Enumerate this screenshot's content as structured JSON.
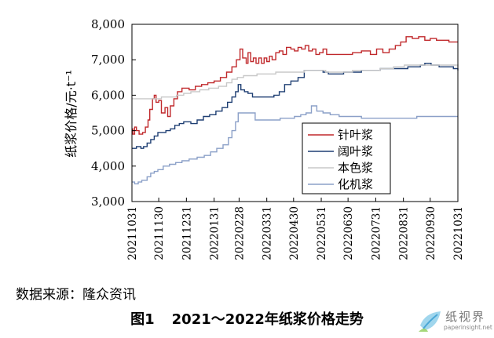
{
  "source_text": "数据来源：隆众资讯",
  "caption": {
    "figure_no": "图1",
    "title": "2021～2022年纸浆价格走势"
  },
  "watermark": {
    "name": "纸视界",
    "url": "paperinsight.net"
  },
  "colors": {
    "softwood": "#c0282b",
    "hardwood": "#1f3f73",
    "natural": "#c8c8c8",
    "mechanical": "#8ba0c8"
  },
  "chart_data": {
    "type": "line",
    "title": "",
    "xlabel": "",
    "ylabel": "纸浆价格/元·t⁻¹",
    "ylim": [
      3000,
      8000
    ],
    "yticks": [
      3000,
      4000,
      5000,
      6000,
      7000,
      8000
    ],
    "ytick_labels": [
      "3,000",
      "4,000",
      "5,000",
      "6,000",
      "7,000",
      "8,000"
    ],
    "xlim": [
      "2021-10-31",
      "2022-10-31"
    ],
    "xtick_labels": [
      "20211031",
      "20211130",
      "20211231",
      "20220131",
      "20220228",
      "20220331",
      "20220430",
      "20220531",
      "20220630",
      "20220731",
      "20220831",
      "20220930",
      "20221031"
    ],
    "legend_position": "right-center",
    "grid": false,
    "series": [
      {
        "name": "针叶浆",
        "color": "#c0282b",
        "points": [
          [
            "2021-10-31",
            5050
          ],
          [
            "2021-11-01",
            4900
          ],
          [
            "2021-11-03",
            5100
          ],
          [
            "2021-11-05",
            5000
          ],
          [
            "2021-11-08",
            4900
          ],
          [
            "2021-11-12",
            4950
          ],
          [
            "2021-11-15",
            5100
          ],
          [
            "2021-11-18",
            5300
          ],
          [
            "2021-11-20",
            5600
          ],
          [
            "2021-11-23",
            5900
          ],
          [
            "2021-11-25",
            6000
          ],
          [
            "2021-11-27",
            5800
          ],
          [
            "2021-11-30",
            5850
          ],
          [
            "2021-12-03",
            5500
          ],
          [
            "2021-12-07",
            5650
          ],
          [
            "2021-12-10",
            5400
          ],
          [
            "2021-12-13",
            5700
          ],
          [
            "2021-12-17",
            5900
          ],
          [
            "2021-12-21",
            6100
          ],
          [
            "2021-12-26",
            6200
          ],
          [
            "2022-01-03",
            6150
          ],
          [
            "2022-01-10",
            6250
          ],
          [
            "2022-01-17",
            6300
          ],
          [
            "2022-01-24",
            6350
          ],
          [
            "2022-01-31",
            6400
          ],
          [
            "2022-02-07",
            6500
          ],
          [
            "2022-02-14",
            6650
          ],
          [
            "2022-02-20",
            6800
          ],
          [
            "2022-02-25",
            7000
          ],
          [
            "2022-03-01",
            7300
          ],
          [
            "2022-03-04",
            7050
          ],
          [
            "2022-03-08",
            6900
          ],
          [
            "2022-03-10",
            7200
          ],
          [
            "2022-03-13",
            6950
          ],
          [
            "2022-03-16",
            7050
          ],
          [
            "2022-03-19",
            6900
          ],
          [
            "2022-03-22",
            7050
          ],
          [
            "2022-03-25",
            6900
          ],
          [
            "2022-03-28",
            7050
          ],
          [
            "2022-03-31",
            6950
          ],
          [
            "2022-04-03",
            7100
          ],
          [
            "2022-04-06",
            7000
          ],
          [
            "2022-04-10",
            7200
          ],
          [
            "2022-04-14",
            7250
          ],
          [
            "2022-04-18",
            7150
          ],
          [
            "2022-04-22",
            7350
          ],
          [
            "2022-04-27",
            7300
          ],
          [
            "2022-05-01",
            7250
          ],
          [
            "2022-05-05",
            7350
          ],
          [
            "2022-05-09",
            7300
          ],
          [
            "2022-05-13",
            7400
          ],
          [
            "2022-05-17",
            7250
          ],
          [
            "2022-05-21",
            7300
          ],
          [
            "2022-05-25",
            7150
          ],
          [
            "2022-05-29",
            7200
          ],
          [
            "2022-06-02",
            7300
          ],
          [
            "2022-06-06",
            7150
          ],
          [
            "2022-06-15",
            7150
          ],
          [
            "2022-06-25",
            7150
          ],
          [
            "2022-07-05",
            7200
          ],
          [
            "2022-07-15",
            7250
          ],
          [
            "2022-07-25",
            7150
          ],
          [
            "2022-08-01",
            7300
          ],
          [
            "2022-08-08",
            7200
          ],
          [
            "2022-08-15",
            7300
          ],
          [
            "2022-08-22",
            7400
          ],
          [
            "2022-08-28",
            7500
          ],
          [
            "2022-09-03",
            7650
          ],
          [
            "2022-09-10",
            7600
          ],
          [
            "2022-09-17",
            7650
          ],
          [
            "2022-09-24",
            7550
          ],
          [
            "2022-09-30",
            7600
          ],
          [
            "2022-10-07",
            7550
          ],
          [
            "2022-10-14",
            7550
          ],
          [
            "2022-10-21",
            7500
          ],
          [
            "2022-10-26",
            7500
          ],
          [
            "2022-10-31",
            7500
          ]
        ]
      },
      {
        "name": "阔叶浆",
        "color": "#1f3f73",
        "points": [
          [
            "2021-10-31",
            4500
          ],
          [
            "2021-11-05",
            4550
          ],
          [
            "2021-11-10",
            4500
          ],
          [
            "2021-11-13",
            4550
          ],
          [
            "2021-11-17",
            4650
          ],
          [
            "2021-11-21",
            4750
          ],
          [
            "2021-11-25",
            4850
          ],
          [
            "2021-11-29",
            4950
          ],
          [
            "2021-12-03",
            4950
          ],
          [
            "2021-12-08",
            5000
          ],
          [
            "2021-12-13",
            5050
          ],
          [
            "2021-12-18",
            5150
          ],
          [
            "2021-12-23",
            5200
          ],
          [
            "2021-12-28",
            5250
          ],
          [
            "2022-01-05",
            5200
          ],
          [
            "2022-01-12",
            5300
          ],
          [
            "2022-01-19",
            5400
          ],
          [
            "2022-01-26",
            5450
          ],
          [
            "2022-02-02",
            5550
          ],
          [
            "2022-02-09",
            5650
          ],
          [
            "2022-02-15",
            5800
          ],
          [
            "2022-02-20",
            5950
          ],
          [
            "2022-02-24",
            6100
          ],
          [
            "2022-02-27",
            6300
          ],
          [
            "2022-03-02",
            6150
          ],
          [
            "2022-03-06",
            6100
          ],
          [
            "2022-03-10",
            6050
          ],
          [
            "2022-03-15",
            5950
          ],
          [
            "2022-03-22",
            5950
          ],
          [
            "2022-04-01",
            5950
          ],
          [
            "2022-04-08",
            6000
          ],
          [
            "2022-04-14",
            6100
          ],
          [
            "2022-04-20",
            6300
          ],
          [
            "2022-04-27",
            6400
          ],
          [
            "2022-05-05",
            6500
          ],
          [
            "2022-05-12",
            6700
          ],
          [
            "2022-05-19",
            6700
          ],
          [
            "2022-05-26",
            6700
          ],
          [
            "2022-06-02",
            6650
          ],
          [
            "2022-06-08",
            6600
          ],
          [
            "2022-06-15",
            6600
          ],
          [
            "2022-06-25",
            6650
          ],
          [
            "2022-07-05",
            6650
          ],
          [
            "2022-07-15",
            6700
          ],
          [
            "2022-07-25",
            6700
          ],
          [
            "2022-08-05",
            6750
          ],
          [
            "2022-08-15",
            6750
          ],
          [
            "2022-08-25",
            6750
          ],
          [
            "2022-09-05",
            6800
          ],
          [
            "2022-09-12",
            6800
          ],
          [
            "2022-09-19",
            6850
          ],
          [
            "2022-09-24",
            6900
          ],
          [
            "2022-10-01",
            6850
          ],
          [
            "2022-10-10",
            6800
          ],
          [
            "2022-10-20",
            6800
          ],
          [
            "2022-10-26",
            6750
          ],
          [
            "2022-10-31",
            6700
          ]
        ]
      },
      {
        "name": "本色浆",
        "color": "#c8c8c8",
        "points": [
          [
            "2021-10-31",
            5900
          ],
          [
            "2021-11-30",
            5900
          ],
          [
            "2021-12-03",
            5950
          ],
          [
            "2021-12-20",
            6000
          ],
          [
            "2021-12-28",
            6050
          ],
          [
            "2022-01-05",
            6100
          ],
          [
            "2022-01-15",
            6150
          ],
          [
            "2022-01-25",
            6200
          ],
          [
            "2022-02-05",
            6250
          ],
          [
            "2022-02-14",
            6350
          ],
          [
            "2022-02-20",
            6450
          ],
          [
            "2022-02-26",
            6500
          ],
          [
            "2022-03-05",
            6550
          ],
          [
            "2022-03-20",
            6600
          ],
          [
            "2022-04-10",
            6650
          ],
          [
            "2022-04-30",
            6650
          ],
          [
            "2022-05-12",
            6700
          ],
          [
            "2022-05-25",
            6700
          ],
          [
            "2022-06-05",
            6650
          ],
          [
            "2022-06-20",
            6650
          ],
          [
            "2022-07-05",
            6700
          ],
          [
            "2022-07-20",
            6700
          ],
          [
            "2022-08-05",
            6750
          ],
          [
            "2022-08-20",
            6800
          ],
          [
            "2022-09-01",
            6850
          ],
          [
            "2022-09-15",
            6850
          ],
          [
            "2022-10-01",
            6850
          ],
          [
            "2022-10-15",
            6850
          ],
          [
            "2022-10-31",
            6800
          ]
        ]
      },
      {
        "name": "化机浆",
        "color": "#8ba0c8",
        "points": [
          [
            "2021-10-31",
            3550
          ],
          [
            "2021-11-03",
            3500
          ],
          [
            "2021-11-07",
            3550
          ],
          [
            "2021-11-11",
            3600
          ],
          [
            "2021-11-17",
            3700
          ],
          [
            "2021-11-21",
            3800
          ],
          [
            "2021-11-25",
            3850
          ],
          [
            "2021-11-29",
            3900
          ],
          [
            "2021-12-05",
            4000
          ],
          [
            "2021-12-12",
            4050
          ],
          [
            "2021-12-19",
            4100
          ],
          [
            "2021-12-26",
            4150
          ],
          [
            "2022-01-03",
            4200
          ],
          [
            "2022-01-12",
            4250
          ],
          [
            "2022-01-20",
            4300
          ],
          [
            "2022-01-27",
            4400
          ],
          [
            "2022-02-03",
            4500
          ],
          [
            "2022-02-10",
            4600
          ],
          [
            "2022-02-16",
            4800
          ],
          [
            "2022-02-20",
            5000
          ],
          [
            "2022-02-24",
            5250
          ],
          [
            "2022-02-27",
            5500
          ],
          [
            "2022-03-10",
            5500
          ],
          [
            "2022-03-18",
            5300
          ],
          [
            "2022-04-01",
            5300
          ],
          [
            "2022-04-15",
            5350
          ],
          [
            "2022-04-25",
            5350
          ],
          [
            "2022-05-01",
            5400
          ],
          [
            "2022-05-08",
            5450
          ],
          [
            "2022-05-14",
            5500
          ],
          [
            "2022-05-20",
            5700
          ],
          [
            "2022-05-26",
            5550
          ],
          [
            "2022-06-02",
            5500
          ],
          [
            "2022-06-10",
            5450
          ],
          [
            "2022-06-20",
            5400
          ],
          [
            "2022-07-01",
            5400
          ],
          [
            "2022-07-15",
            5350
          ],
          [
            "2022-08-01",
            5350
          ],
          [
            "2022-08-15",
            5350
          ],
          [
            "2022-09-01",
            5350
          ],
          [
            "2022-09-15",
            5400
          ],
          [
            "2022-10-01",
            5400
          ],
          [
            "2022-10-31",
            5400
          ]
        ]
      }
    ]
  }
}
